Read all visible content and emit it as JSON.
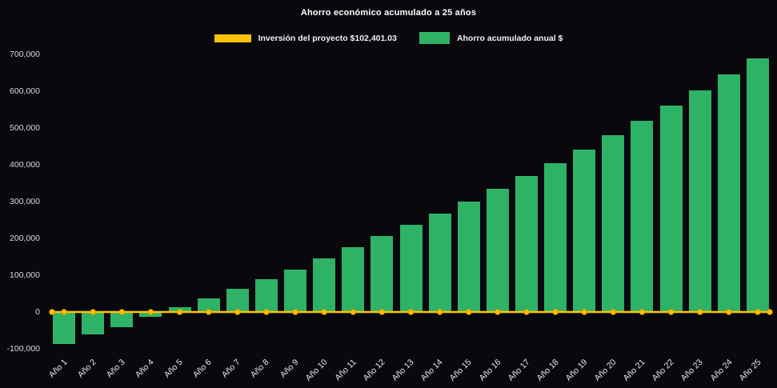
{
  "title": "Ahorro económico acumulado a 25 años",
  "legend": {
    "items": [
      {
        "label": "Inversión del proyecto $102,401.03",
        "color": "#FFC303",
        "kind": "line"
      },
      {
        "label": "Ahorro acumulado anual $",
        "color": "#2EB265",
        "kind": "bar"
      }
    ]
  },
  "colors": {
    "background": "#08080D",
    "bar": "#2EB265",
    "line": "#FFC303",
    "marker_stroke": "#DB9E00",
    "title_text": "#FFFFFF",
    "axis_text": "#DCDCDC"
  },
  "chart_data": {
    "type": "bar",
    "title": "Ahorro económico acumulado a 25 años",
    "categories": [
      "Año 1",
      "Año 2",
      "Año 3",
      "Año 4",
      "Año 5",
      "Año 6",
      "Año 7",
      "Año 8",
      "Año 9",
      "Año 10",
      "Año 11",
      "Año 12",
      "Año 13",
      "Año 14",
      "Año 15",
      "Año 16",
      "Año 17",
      "Año 18",
      "Año 19",
      "Año 20",
      "Año 21",
      "Año 22",
      "Año 23",
      "Año 24",
      "Año 25"
    ],
    "series": [
      {
        "name": "Ahorro acumulado anual $",
        "type": "bar",
        "color": "#2EB265",
        "values": [
          -88000,
          -60000,
          -42000,
          -14000,
          13000,
          38000,
          63000,
          89000,
          116000,
          146000,
          176000,
          206000,
          236000,
          268000,
          301000,
          335000,
          369000,
          405000,
          442000,
          480000,
          520000,
          561000,
          603000,
          646000,
          690000
        ]
      },
      {
        "name": "Inversión del proyecto $102,401.03",
        "type": "line",
        "color": "#FFC303",
        "values": [
          0,
          0,
          0,
          0,
          0,
          0,
          0,
          0,
          0,
          0,
          0,
          0,
          0,
          0,
          0,
          0,
          0,
          0,
          0,
          0,
          0,
          0,
          0,
          0,
          0
        ]
      }
    ],
    "ylim": [
      -100000,
      700000
    ],
    "yticks": [
      {
        "value": -100000,
        "label": "-100,000"
      },
      {
        "value": 0,
        "label": "0"
      },
      {
        "value": 100000,
        "label": "100,000"
      },
      {
        "value": 200000,
        "label": "200,000"
      },
      {
        "value": 300000,
        "label": "300,000"
      },
      {
        "value": 400000,
        "label": "400,000"
      },
      {
        "value": 500000,
        "label": "500,000"
      },
      {
        "value": 600000,
        "label": "600,000"
      },
      {
        "value": 700000,
        "label": "700,000"
      }
    ],
    "xlabel": "",
    "ylabel": "",
    "grid": false,
    "legend_position": "top"
  }
}
